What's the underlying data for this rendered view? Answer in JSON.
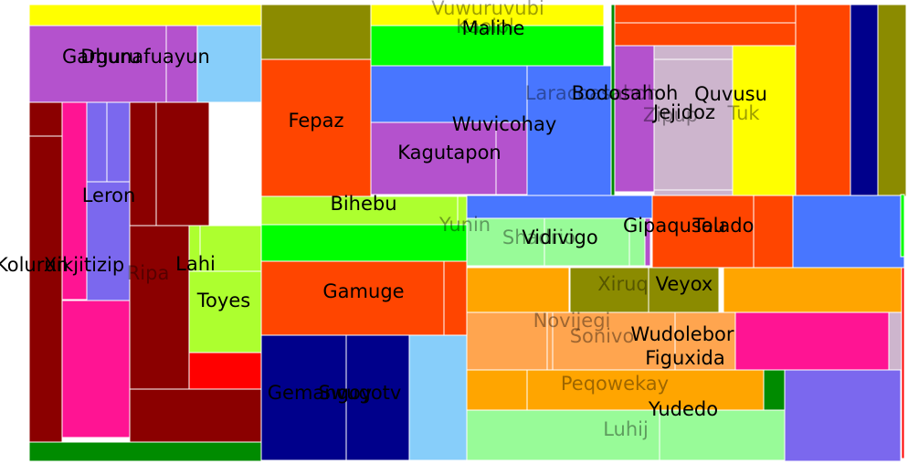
{
  "chart_data": {
    "type": "treemap",
    "cells": [
      {
        "label": "",
        "color": "#ffff00",
        "value": 1012
      },
      {
        "label": "Garguru",
        "color": "#b452cd",
        "value": 4212
      },
      {
        "label": "Dhunafuayun",
        "color": "#b452cd",
        "value": 1071
      },
      {
        "label": "",
        "color": "#87cefa",
        "value": 2465
      },
      {
        "label": "",
        "color": "#8b0000",
        "value": 1296
      },
      {
        "label": "Kolurun",
        "color": "#8b0000",
        "value": 11772
      },
      {
        "label": "Xikjitizip",
        "color": "#ff1493",
        "value": 7308
      },
      {
        "label": "",
        "color": "#7b68ee",
        "value": 1856
      },
      {
        "label": "",
        "color": "#7b68ee",
        "value": 2088
      },
      {
        "label": "Leron",
        "color": "#7b68ee",
        "value": 3712
      },
      {
        "label": "",
        "color": "#ff1493",
        "value": 6450
      },
      {
        "label": "",
        "color": "#8b0000",
        "value": 3528
      },
      {
        "label": "",
        "color": "#8b0000",
        "value": 7952
      },
      {
        "label": "Ripa",
        "color": "#8b0000",
        "value": 11760
      },
      {
        "label": "",
        "color": "#adff2f",
        "value": 2220
      },
      {
        "label": "Lahi",
        "color": "#adff2f",
        "value": 3904
      },
      {
        "label": "Toyes",
        "color": "#adff2f",
        "value": 5024
      },
      {
        "label": "",
        "color": "#ff0000",
        "value": 3160
      },
      {
        "label": "",
        "color": "#8b0000",
        "value": 8580
      },
      {
        "label": "",
        "color": "#008b00",
        "value": 5046
      },
      {
        "label": "",
        "color": "#8b8b00",
        "value": 7200
      },
      {
        "label": "Fepaz",
        "color": "#ff4500",
        "value": 17160
      },
      {
        "label": "Vuwuruvubi",
        "color": "#ffff00",
        "value": 5610
      },
      {
        "label": "Kaoiol",
        "color": "#00ff00",
        "value": 11466
      },
      {
        "label": "",
        "color": "#00ff00",
        "value": 315
      },
      {
        "label": "Malihe",
        "color": "#00ff00",
        "value": 1932
      },
      {
        "label": "",
        "color": "#4876ff",
        "value": 9810
      },
      {
        "label": "Kagutapon",
        "color": "#b452cd",
        "value": 10868
      },
      {
        "label": "Wuvicohay",
        "color": "#b452cd",
        "value": 3770
      },
      {
        "label": "Laracoasahoh",
        "color": "#4876ff",
        "value": 9600
      },
      {
        "label": "Bodosahoh",
        "color": "#008b00",
        "value": 860
      },
      {
        "label": "",
        "color": "#ff4500",
        "value": 3592
      },
      {
        "label": "",
        "color": "#ff4500",
        "value": 4844
      },
      {
        "label": "",
        "color": "#cdb5cd",
        "value": 840
      },
      {
        "label": "Zipup",
        "color": "#b452cd",
        "value": 6364
      },
      {
        "label": "Jejidoz",
        "color": "#cdb5cd",
        "value": 12090
      },
      {
        "label": "Quvusu",
        "color": "#ffff00",
        "value": 10920
      },
      {
        "label": "Tuk",
        "color": "#cdb5cd",
        "value": 140
      },
      {
        "label": "",
        "color": "#ff4500",
        "value": 12360
      },
      {
        "label": "",
        "color": "#00008b",
        "value": 6210
      },
      {
        "label": "",
        "color": "#8b8b00",
        "value": 6696
      },
      {
        "label": "Bihebu",
        "color": "#adff2f",
        "value": 7380
      },
      {
        "label": "",
        "color": "#adff2f",
        "value": 216
      },
      {
        "label": "",
        "color": "#00ff00",
        "value": 8560
      },
      {
        "label": "Gamuge",
        "color": "#ff4500",
        "value": 16000
      },
      {
        "label": "",
        "color": "#ff4500",
        "value": 1760
      },
      {
        "label": "Gemangoy",
        "color": "#00008b",
        "value": 10652
      },
      {
        "label": "Swugotv",
        "color": "#00008b",
        "value": 9936
      },
      {
        "label": "",
        "color": "#87cefa",
        "value": 8832
      },
      {
        "label": "",
        "color": "#4876ff",
        "value": 5075
      },
      {
        "label": "Yunin",
        "color": "#98fb98",
        "value": 2652
      },
      {
        "label": "Shadrio",
        "color": "#98fb98",
        "value": 8060
      },
      {
        "label": "Vidivigo",
        "color": "#98fb98",
        "value": 2340
      },
      {
        "label": "Gipaqusau",
        "color": "#b452cd",
        "value": 312
      },
      {
        "label": "Tolado",
        "color": "#ff4500",
        "value": 8820
      },
      {
        "label": "",
        "color": "#ff4500",
        "value": 3220
      },
      {
        "label": "",
        "color": "#4876ff",
        "value": 9800
      },
      {
        "label": "",
        "color": "#ffa500",
        "value": 5488
      },
      {
        "label": "Xiruq",
        "color": "#8b8b00",
        "value": 4816
      },
      {
        "label": "Veyox",
        "color": "#8b8b00",
        "value": 5488
      },
      {
        "label": "",
        "color": "#ffa500",
        "value": 9700
      },
      {
        "label": "",
        "color": "#ff0000",
        "value": 100
      },
      {
        "label": "",
        "color": "#ffa54f",
        "value": 5310
      },
      {
        "label": "Novijegi",
        "color": "#ffa54f",
        "value": 7140
      },
      {
        "label": "Sonivo",
        "color": "#ffa54f",
        "value": 8440
      },
      {
        "label": "Wudolebor",
        "color": "#ffa54f",
        "value": 7140
      },
      {
        "label": "Figuxida",
        "color": "#ff1493",
        "value": 11858
      },
      {
        "label": "",
        "color": "#cdb5cd",
        "value": 744
      },
      {
        "label": "",
        "color": "#ffa500",
        "value": 2970
      },
      {
        "label": "Peqowekay",
        "color": "#ffa500",
        "value": 11470
      },
      {
        "label": "",
        "color": "#008b00",
        "value": 1081
      },
      {
        "label": "",
        "color": "#7b68ee",
        "value": 12700
      },
      {
        "label": "Luhij",
        "color": "#98fb98",
        "value": 11448
      },
      {
        "label": "Yudedo",
        "color": "#98fb98",
        "value": 6834
      },
      {
        "label": "",
        "color": "#00ff00",
        "value": 146
      }
    ]
  }
}
